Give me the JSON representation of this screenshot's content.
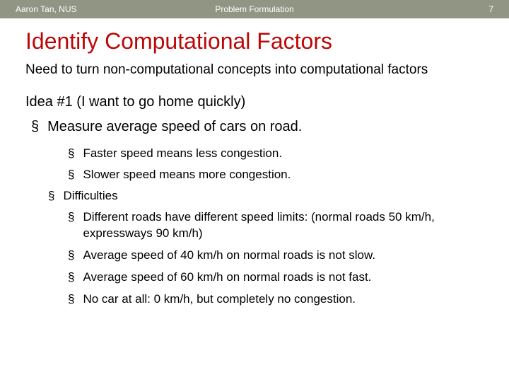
{
  "header": {
    "author": "Aaron Tan, NUS",
    "section": "Problem Formulation",
    "page_number": "7",
    "bg_color": "#909683",
    "text_color": "#ffffff"
  },
  "title": {
    "text": "Identify Computational Factors",
    "color": "#bb0706"
  },
  "intro": "Need to turn non-computational concepts into computational factors",
  "idea_heading": "Idea #1 (I want to go home quickly)",
  "main_bullet": "Measure average speed of cars on road.",
  "sub_bullets": [
    "Faster speed means less congestion.",
    "Slower speed means more congestion."
  ],
  "difficulties_label": "Difficulties",
  "difficulties": [
    "Different roads have different speed limits: (normal roads 50 km/h, expressways 90 km/h)",
    "Average speed of 40 km/h on normal roads is not slow.",
    "Average speed of 60 km/h on normal roads is not fast.",
    "No car at all: 0 km/h, but completely no congestion."
  ],
  "bullet_marker": "§"
}
